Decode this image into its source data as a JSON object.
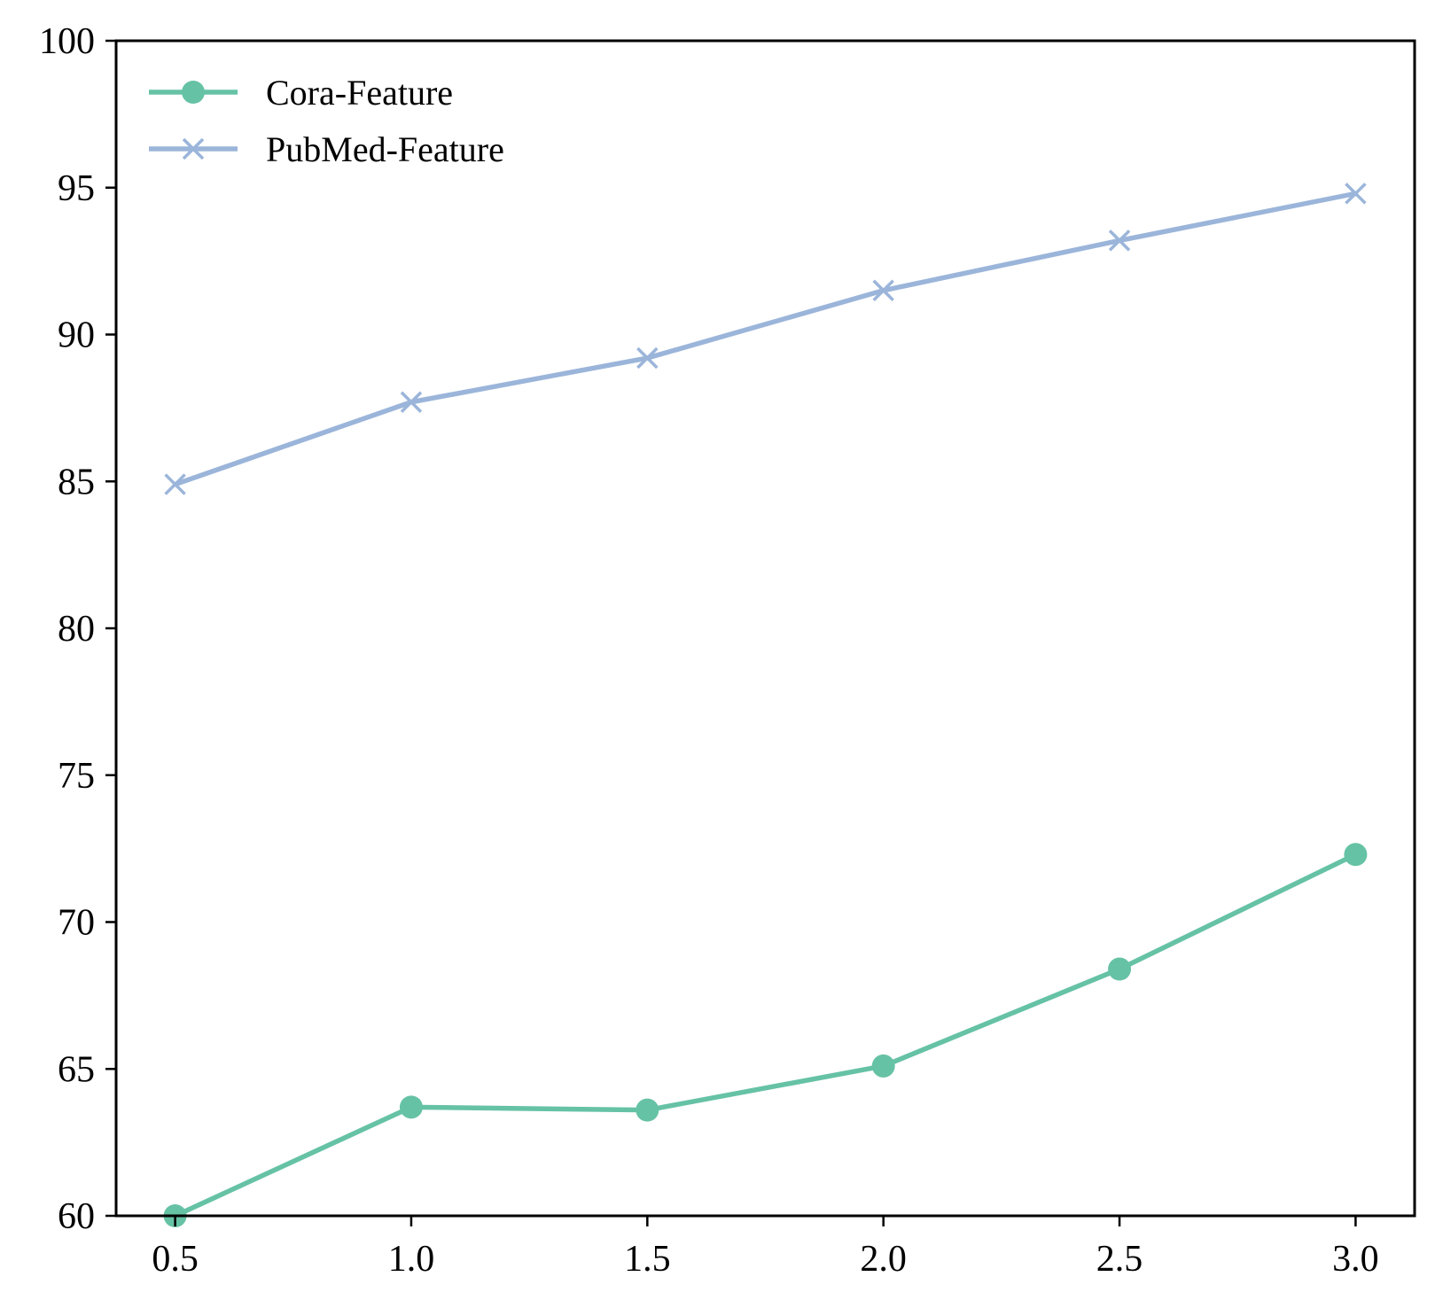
{
  "chart_data": {
    "type": "line",
    "title": "",
    "xlabel": "",
    "ylabel": "",
    "x": [
      0.5,
      1.0,
      1.5,
      2.0,
      2.5,
      3.0
    ],
    "xlim": [
      0.375,
      3.125
    ],
    "ylim": [
      60,
      100
    ],
    "xticks": [
      0.5,
      1.0,
      1.5,
      2.0,
      2.5,
      3.0
    ],
    "xtick_labels": [
      "0.5",
      "1.0",
      "1.5",
      "2.0",
      "2.5",
      "3.0"
    ],
    "yticks": [
      60,
      65,
      70,
      75,
      80,
      85,
      90,
      95,
      100
    ],
    "ytick_labels": [
      "60",
      "65",
      "70",
      "75",
      "80",
      "85",
      "90",
      "95",
      "100"
    ],
    "grid": false,
    "legend_position": "top-left",
    "series": [
      {
        "name": "Cora-Feature",
        "marker": "circle",
        "color": "#66c2a5",
        "values": [
          60.0,
          63.7,
          63.6,
          65.1,
          68.4,
          72.3
        ]
      },
      {
        "name": "PubMed-Feature",
        "marker": "x",
        "color": "#9bb5da",
        "values": [
          84.9,
          87.7,
          89.2,
          91.5,
          93.2,
          94.8
        ]
      }
    ]
  }
}
